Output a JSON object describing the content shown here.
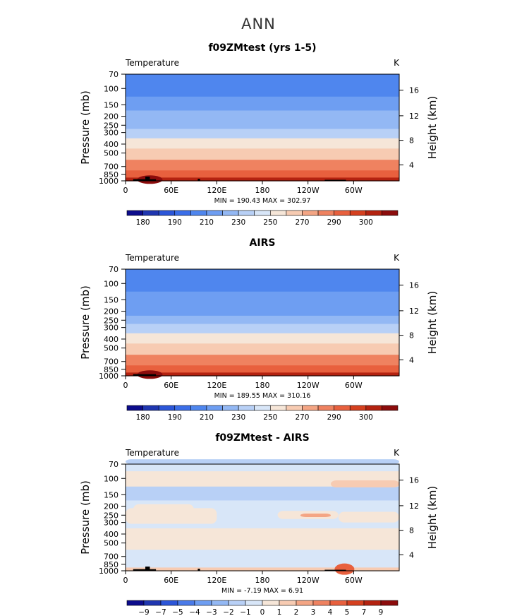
{
  "page_title": "ANN",
  "colors": {
    "abs": [
      "#0c0c8c",
      "#1f36b0",
      "#2c56d8",
      "#3b6ee8",
      "#4f86ee",
      "#6e9ef2",
      "#93b8f4",
      "#b8d0f6",
      "#d8e6f8",
      "#f6e6d8",
      "#f7cbb2",
      "#f4a584",
      "#ef8260",
      "#e8603e",
      "#d5401f",
      "#b42210",
      "#8c0c0c"
    ],
    "diff": [
      "#0c0c8c",
      "#1f36b0",
      "#2c56d8",
      "#4a7ae8",
      "#6e9ef2",
      "#93b8f4",
      "#b8d0f6",
      "#d8e6f8",
      "#f6e6d8",
      "#f7cbb2",
      "#f4a584",
      "#ef8260",
      "#e8603e",
      "#d5401f",
      "#b42210",
      "#8c0c0c"
    ]
  },
  "axes": {
    "variable": "Temperature",
    "units": "K",
    "ylabel": "Pressure (mb)",
    "ylabel_right": "Height (km)",
    "pressure_ticks": [
      "70",
      "100",
      "150",
      "200",
      "250",
      "300",
      "400",
      "500",
      "700",
      "850",
      "1000"
    ],
    "height_ticks": [
      "16",
      "12",
      "8",
      "4"
    ],
    "lon_ticks": [
      "0",
      "60E",
      "120E",
      "180",
      "120W",
      "60W"
    ]
  },
  "chart_data": [
    {
      "type": "heatmap",
      "title": "f09ZMtest (yrs 1-5)",
      "stats": "MIN = 190.43   MAX = 302.97",
      "colorbar_labels": [
        "180",
        "190",
        "210",
        "230",
        "250",
        "270",
        "290",
        "300"
      ],
      "levels_by_pressure": [
        {
          "p": 70,
          "temp": 208
        },
        {
          "p": 100,
          "temp": 205
        },
        {
          "p": 150,
          "temp": 212
        },
        {
          "p": 200,
          "temp": 220
        },
        {
          "p": 250,
          "temp": 228
        },
        {
          "p": 300,
          "temp": 238
        },
        {
          "p": 400,
          "temp": 252
        },
        {
          "p": 500,
          "temp": 262
        },
        {
          "p": 700,
          "temp": 277
        },
        {
          "p": 850,
          "temp": 287
        },
        {
          "p": 1000,
          "temp": 296
        }
      ]
    },
    {
      "type": "heatmap",
      "title": "AIRS",
      "stats": "MIN = 189.55   MAX = 310.16",
      "colorbar_labels": [
        "180",
        "190",
        "210",
        "230",
        "250",
        "270",
        "290",
        "300"
      ],
      "levels_by_pressure": [
        {
          "p": 70,
          "temp": 207
        },
        {
          "p": 100,
          "temp": 204
        },
        {
          "p": 150,
          "temp": 211
        },
        {
          "p": 200,
          "temp": 219
        },
        {
          "p": 250,
          "temp": 228
        },
        {
          "p": 300,
          "temp": 238
        },
        {
          "p": 400,
          "temp": 252
        },
        {
          "p": 500,
          "temp": 262
        },
        {
          "p": 700,
          "temp": 277
        },
        {
          "p": 850,
          "temp": 287
        },
        {
          "p": 1000,
          "temp": 297
        }
      ]
    },
    {
      "type": "heatmap",
      "title": "f09ZMtest - AIRS",
      "stats": "MIN =  -7.19   MAX =   6.91",
      "colorbar_labels": [
        "−9",
        "−7",
        "−5",
        "−4",
        "−3",
        "−2",
        "−1",
        "0",
        "1",
        "2",
        "3",
        "4",
        "5",
        "7",
        "9"
      ],
      "levels_by_pressure": [
        {
          "p": 70,
          "diff": -0.8
        },
        {
          "p": 100,
          "diff": 0.4
        },
        {
          "p": 150,
          "diff": -1.2
        },
        {
          "p": 200,
          "diff": -0.3
        },
        {
          "p": 250,
          "diff": -0.4
        },
        {
          "p": 300,
          "diff": -0.2
        },
        {
          "p": 400,
          "diff": 0.4
        },
        {
          "p": 500,
          "diff": 0.3
        },
        {
          "p": 700,
          "diff": -0.3
        },
        {
          "p": 850,
          "diff": -0.6
        },
        {
          "p": 1000,
          "diff": 1.5
        }
      ]
    }
  ]
}
